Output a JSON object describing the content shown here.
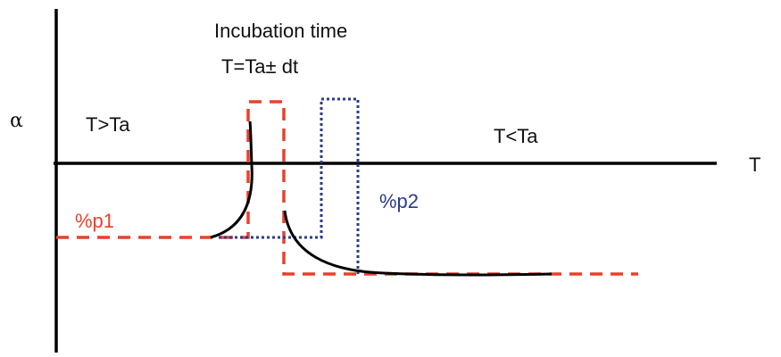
{
  "labels": {
    "incubation_title": "Incubation time",
    "incubation_formula": "T=Ta± dt",
    "y_axis_symbol": "α",
    "x_axis_symbol": "T",
    "region_left": "T>Ta",
    "region_right": "T<Ta",
    "phase1": "%p1",
    "phase2": "%p2"
  },
  "colors": {
    "axis": "#000000",
    "curve": "#000000",
    "phase1": "#e8412c",
    "phase2": "#2b3a8c"
  }
}
